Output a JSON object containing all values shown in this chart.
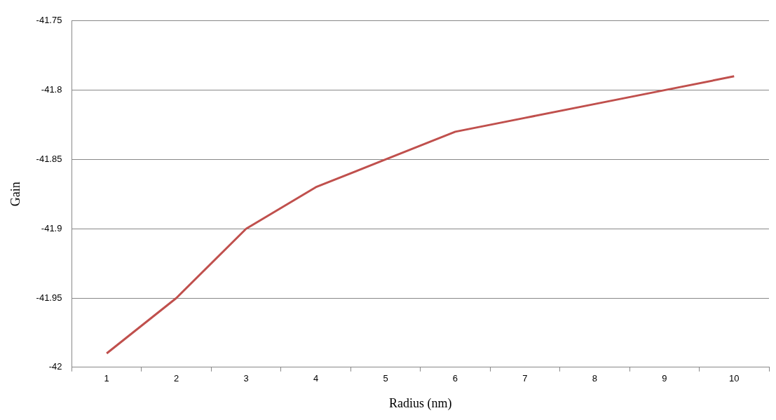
{
  "chart_data": {
    "type": "line",
    "xlabel": "Radius (nm)",
    "ylabel": "Gain",
    "categories": [
      "1",
      "2",
      "3",
      "4",
      "5",
      "6",
      "7",
      "8",
      "9",
      "10"
    ],
    "series": [
      {
        "color": "#c0504d",
        "values": [
          -41.99,
          -41.95,
          -41.9,
          -41.87,
          -41.85,
          -41.83,
          -41.82,
          -41.81,
          -41.8,
          -41.79
        ]
      }
    ],
    "ylim": [
      -42,
      -41.75
    ],
    "yticks": [
      -42,
      -41.95,
      -41.9,
      -41.85,
      -41.8,
      -41.75
    ],
    "grid": "y",
    "legend": false,
    "marker": "none",
    "line_style": "solid"
  }
}
